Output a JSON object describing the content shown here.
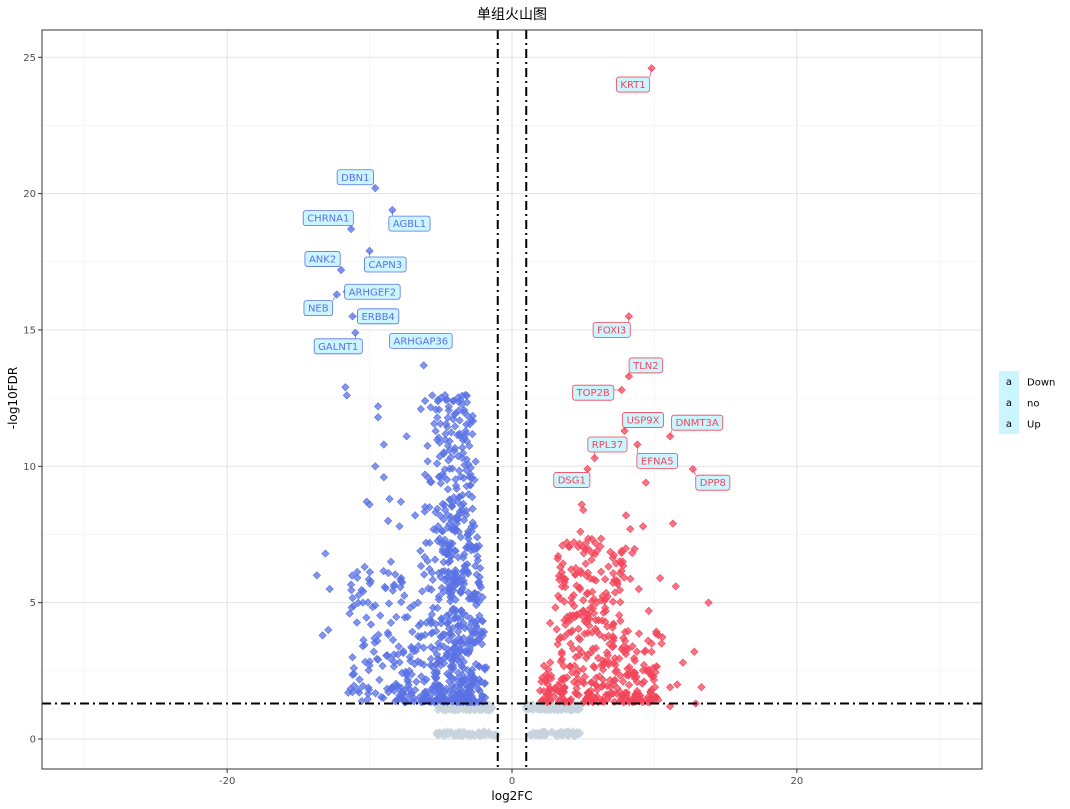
{
  "chart_data": {
    "type": "scatter",
    "title": "单组火山图",
    "xlabel": "log2FC",
    "ylabel": "-log10FDR",
    "xlim": [
      -33,
      33
    ],
    "ylim": [
      -1.1,
      26
    ],
    "x_ticks": [
      -20,
      0,
      20
    ],
    "y_ticks": [
      0,
      5,
      10,
      15,
      20,
      25
    ],
    "grid": true,
    "thresholds": {
      "x": [
        -1,
        1
      ],
      "y": 1.3
    },
    "colors": {
      "Down": "#5A72E4",
      "no": "#C8D4DD",
      "Up": "#F3455A",
      "label_fill": "#CCF6FF"
    },
    "legend": {
      "position": "right",
      "entries": [
        {
          "name": "Down",
          "color": "#5A72E4"
        },
        {
          "name": "no",
          "color": "#C8D4DD"
        },
        {
          "name": "Up",
          "color": "#F3455A"
        }
      ],
      "key_glyph": "a"
    },
    "labeled_points": [
      {
        "gene": "KRT1",
        "x": 9.8,
        "y": 24.6,
        "group": "Up",
        "lx": 8.5,
        "ly": 24.0
      },
      {
        "gene": "DBN1",
        "x": -9.6,
        "y": 20.2,
        "group": "Down",
        "lx": -11.0,
        "ly": 20.6
      },
      {
        "gene": "CHRNA1",
        "x": -11.3,
        "y": 18.7,
        "group": "Down",
        "lx": -12.9,
        "ly": 19.1
      },
      {
        "gene": "AGBL1",
        "x": -8.4,
        "y": 19.4,
        "group": "Down",
        "lx": -7.2,
        "ly": 18.9
      },
      {
        "gene": "ANK2",
        "x": -12.0,
        "y": 17.2,
        "group": "Down",
        "lx": -13.3,
        "ly": 17.6
      },
      {
        "gene": "CAPN3",
        "x": -10.0,
        "y": 17.9,
        "group": "Down",
        "lx": -8.9,
        "ly": 17.4
      },
      {
        "gene": "ARHGEF2",
        "x": -11.6,
        "y": 16.4,
        "group": "Down",
        "lx": -9.8,
        "ly": 16.4
      },
      {
        "gene": "NEB",
        "x": -12.3,
        "y": 16.3,
        "group": "Down",
        "lx": -13.6,
        "ly": 15.8
      },
      {
        "gene": "ERBB4",
        "x": -11.2,
        "y": 15.5,
        "group": "Down",
        "lx": -9.4,
        "ly": 15.5
      },
      {
        "gene": "GALNT1",
        "x": -11.0,
        "y": 14.9,
        "group": "Down",
        "lx": -12.2,
        "ly": 14.4
      },
      {
        "gene": "ARHGAP36",
        "x": -8.1,
        "y": 14.5,
        "group": "Down",
        "lx": -6.4,
        "ly": 14.6
      },
      {
        "gene": "FOXI3",
        "x": 8.2,
        "y": 15.5,
        "group": "Up",
        "lx": 7.0,
        "ly": 15.0
      },
      {
        "gene": "TLN2",
        "x": 8.2,
        "y": 13.3,
        "group": "Up",
        "lx": 9.4,
        "ly": 13.7
      },
      {
        "gene": "TOP2B",
        "x": 7.7,
        "y": 12.8,
        "group": "Up",
        "lx": 5.7,
        "ly": 12.7
      },
      {
        "gene": "USP9X",
        "x": 7.9,
        "y": 11.3,
        "group": "Up",
        "lx": 9.2,
        "ly": 11.7
      },
      {
        "gene": "DNMT3A",
        "x": 11.1,
        "y": 11.1,
        "group": "Up",
        "lx": 13.0,
        "ly": 11.6
      },
      {
        "gene": "RPL37",
        "x": 5.8,
        "y": 10.3,
        "group": "Up",
        "lx": 6.7,
        "ly": 10.8
      },
      {
        "gene": "EFNA5",
        "x": 8.8,
        "y": 10.8,
        "group": "Up",
        "lx": 10.2,
        "ly": 10.2
      },
      {
        "gene": "DSG1",
        "x": 5.3,
        "y": 9.9,
        "group": "Up",
        "lx": 4.2,
        "ly": 9.5
      },
      {
        "gene": "DPP8",
        "x": 12.7,
        "y": 9.9,
        "group": "Up",
        "lx": 14.1,
        "ly": 9.4
      }
    ],
    "extra_points": {
      "Down": [
        [
          -13.7,
          6.0
        ],
        [
          -13.1,
          6.8
        ],
        [
          -12.9,
          4.0
        ],
        [
          -13.3,
          3.8
        ],
        [
          -12.8,
          5.5
        ],
        [
          -11.2,
          3.0
        ],
        [
          -11.1,
          2.6
        ],
        [
          -11.5,
          1.7
        ],
        [
          -11.4,
          4.6
        ],
        [
          -9.6,
          4.9
        ],
        [
          -10.8,
          1.8
        ],
        [
          -10.0,
          2.7
        ],
        [
          -10.2,
          8.7
        ],
        [
          -9.9,
          4.2
        ],
        [
          -11.7,
          12.9
        ],
        [
          -11.6,
          12.6
        ],
        [
          -9.4,
          12.2
        ],
        [
          -9.4,
          11.8
        ],
        [
          -9.0,
          10.8
        ],
        [
          -9.6,
          10.0
        ],
        [
          -9.0,
          9.6
        ],
        [
          -10.0,
          8.6
        ],
        [
          -9.7,
          3.2
        ],
        [
          -8.7,
          8.0
        ],
        [
          -8.3,
          5.6
        ],
        [
          -8.5,
          6.5
        ],
        [
          -7.9,
          7.8
        ],
        [
          -7.9,
          1.6
        ],
        [
          -7.4,
          11.1
        ],
        [
          -7.3,
          2.1
        ],
        [
          -7.5,
          1.8
        ],
        [
          -6.8,
          8.2
        ],
        [
          -6.2,
          13.7
        ],
        [
          -6.4,
          12.1
        ],
        [
          -6.1,
          12.4
        ],
        [
          -5.6,
          12.6
        ],
        [
          -5.8,
          8.5
        ],
        [
          -6.8,
          1.8
        ],
        [
          -8.6,
          8.8
        ],
        [
          -7.8,
          8.7
        ]
      ],
      "Up": [
        [
          9.4,
          9.4
        ],
        [
          13.8,
          5.0
        ],
        [
          12.8,
          3.2
        ],
        [
          12.0,
          2.8
        ],
        [
          11.5,
          5.6
        ],
        [
          11.6,
          2.0
        ],
        [
          10.5,
          3.5
        ],
        [
          10.4,
          5.9
        ],
        [
          11.3,
          7.9
        ],
        [
          9.9,
          2.6
        ],
        [
          9.8,
          3.2
        ],
        [
          9.2,
          7.8
        ],
        [
          9.3,
          3.2
        ],
        [
          8.3,
          7.7
        ],
        [
          8.0,
          8.2
        ],
        [
          11.1,
          1.9
        ],
        [
          12.9,
          1.3
        ],
        [
          11.1,
          1.2
        ],
        [
          9.0,
          1.6
        ],
        [
          13.3,
          1.9
        ],
        [
          9.6,
          4.7
        ],
        [
          8.9,
          5.5
        ],
        [
          4.9,
          8.6
        ],
        [
          5.0,
          8.4
        ],
        [
          4.8,
          7.6
        ]
      ]
    }
  }
}
